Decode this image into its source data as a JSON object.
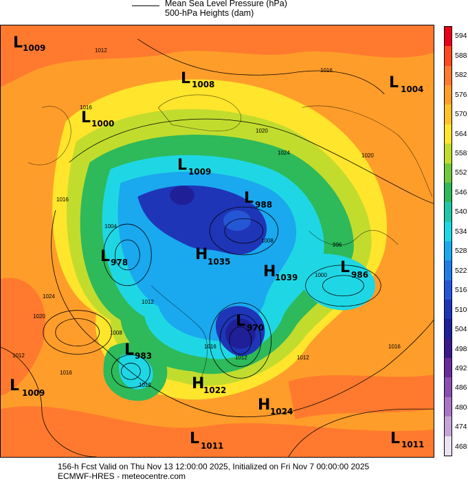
{
  "legend": {
    "line1": "Mean Sea Level Pressure (hPa)",
    "line2": "500-hPa Heights (dam)"
  },
  "footer": {
    "line1": "156-h Fcst Valid on Thu Nov 13 12:00:00 2025, Initialized on Fri Nov  7 00:00:00 2025",
    "line2": "ECMWF-HRES  - meteocentre.com"
  },
  "colorbar": {
    "labels": [
      "594",
      "588",
      "582",
      "576",
      "570",
      "564",
      "558",
      "552",
      "546",
      "540",
      "534",
      "528",
      "522",
      "516",
      "510",
      "504",
      "498",
      "492",
      "486",
      "480",
      "474",
      "468"
    ],
    "colors": [
      "#e8001a",
      "#ff4a1f",
      "#ff7a2e",
      "#ff9d2a",
      "#ffc229",
      "#ffe52b",
      "#c2dc2e",
      "#6fc83d",
      "#2eb95a",
      "#1fc6a9",
      "#1fd7e4",
      "#1aa8ef",
      "#1f7de5",
      "#2556d6",
      "#1f35b8",
      "#1f1f98",
      "#3a1a8a",
      "#6a2c99",
      "#8b4fb0",
      "#a975c5",
      "#c6a4d8",
      "#ebe3f1"
    ]
  },
  "centers": [
    {
      "type": "L",
      "value": "1009"
    },
    {
      "type": "L",
      "value": "1008"
    },
    {
      "type": "L",
      "value": "1004"
    },
    {
      "type": "L",
      "value": "1000"
    },
    {
      "type": "L",
      "value": "1009"
    },
    {
      "type": "L",
      "value": "988"
    },
    {
      "type": "L",
      "value": "978"
    },
    {
      "type": "H",
      "value": "1035"
    },
    {
      "type": "H",
      "value": "1039"
    },
    {
      "type": "L",
      "value": "986"
    },
    {
      "type": "L",
      "value": "970"
    },
    {
      "type": "L",
      "value": "983"
    },
    {
      "type": "L",
      "value": "1009"
    },
    {
      "type": "H",
      "value": "1022"
    },
    {
      "type": "H",
      "value": "1024"
    },
    {
      "type": "L",
      "value": "1011"
    },
    {
      "type": "L",
      "value": "1011"
    }
  ],
  "isobar_labels": [
    "1012",
    "1016",
    "1016",
    "1020",
    "1024",
    "1020",
    "1024",
    "1020",
    "1012",
    "1016",
    "1016",
    "1012",
    "1012",
    "1008",
    "1016",
    "1012",
    "1016",
    "996",
    "1000",
    "1004",
    "1008",
    "1012"
  ]
}
